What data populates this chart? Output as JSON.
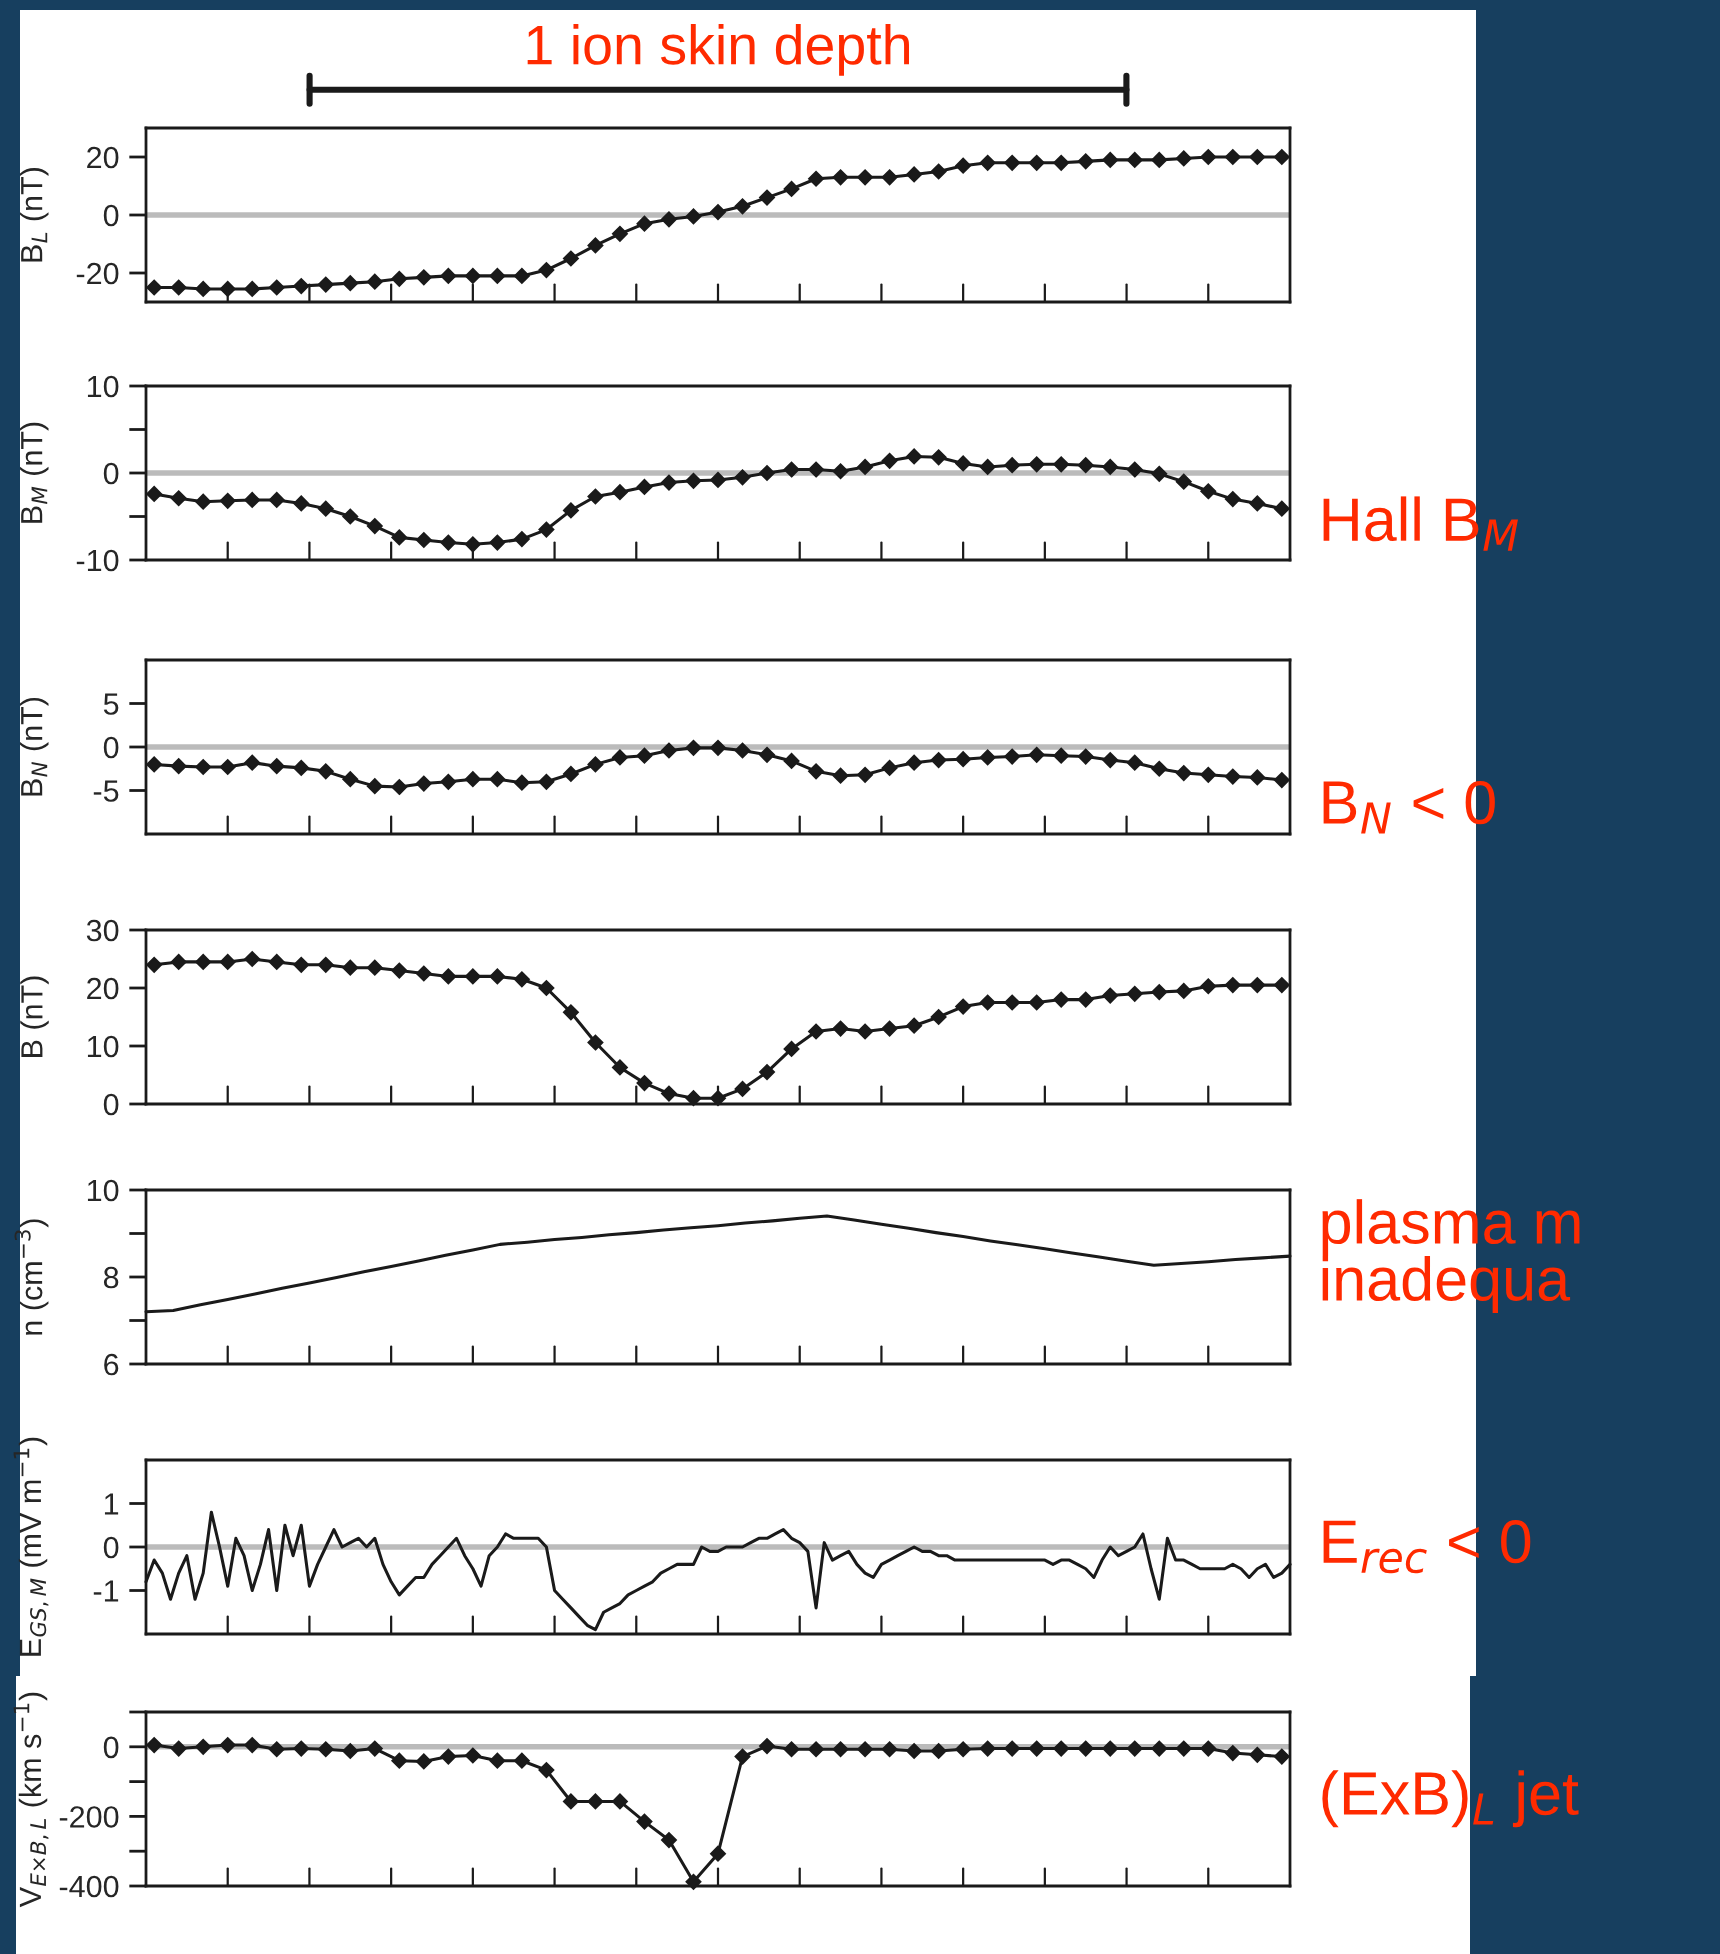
{
  "chart_data": [
    {
      "type": "line",
      "ylabel": "B$_{L}$ (nT)",
      "categories": [
        null,
        null,
        null,
        null,
        null,
        null,
        null,
        null,
        null,
        null,
        null,
        null,
        null,
        null,
        null,
        null,
        null,
        null,
        null,
        null,
        null,
        null,
        null,
        null,
        null,
        null,
        null,
        null,
        null,
        null,
        null,
        null,
        null,
        null,
        null,
        null,
        null,
        null,
        null,
        null,
        null,
        null,
        null,
        null,
        null,
        null,
        null
      ],
      "ylim": [
        -30,
        30
      ],
      "yticks": [
        -20,
        0,
        20
      ],
      "tick_labels": "y",
      "marker": "diamond",
      "line_style": "solid",
      "series": [
        {
          "color": "#1a1a1a",
          "values": [
            -25,
            -25,
            -25.5,
            -25.5,
            -25.5,
            -25,
            -24.5,
            -24,
            -23.5,
            -23,
            -22,
            -21.5,
            -21,
            -21,
            -21,
            -21,
            -19,
            -15,
            -10.5,
            -6.5,
            -3,
            -1.5,
            -0.5,
            1,
            3,
            6,
            9,
            12.5,
            13,
            13,
            13,
            14,
            15,
            17,
            18,
            18,
            18,
            18,
            18.5,
            19,
            19,
            19,
            19.5,
            20,
            20,
            20,
            20
          ]
        }
      ],
      "ref_lines": [
        {
          "axis": "y",
          "value": 0,
          "color": "#bbbbbb"
        }
      ],
      "annotations": [
        "1 ion skin depth"
      ]
    },
    {
      "type": "line",
      "ylabel": "B$_{M}$ (nT)",
      "categories": [
        null,
        null,
        null,
        null,
        null,
        null,
        null,
        null,
        null,
        null,
        null,
        null,
        null,
        null,
        null,
        null,
        null,
        null,
        null,
        null,
        null,
        null,
        null,
        null,
        null,
        null,
        null,
        null,
        null,
        null,
        null,
        null,
        null,
        null,
        null,
        null,
        null,
        null,
        null,
        null,
        null,
        null,
        null,
        null,
        null,
        null,
        null
      ],
      "ylim": [
        -10,
        10
      ],
      "yticks": [
        -10,
        {
          "value": -5,
          "label": null
        },
        0,
        {
          "value": 5,
          "label": null
        },
        10
      ],
      "tick_labels": "y",
      "marker": "diamond",
      "line_style": "solid",
      "series": [
        {
          "color": "#1a1a1a",
          "values": [
            -2.4,
            -2.9,
            -3.3,
            -3.2,
            -3.1,
            -3.1,
            -3.5,
            -4.1,
            -5,
            -6.1,
            -7.4,
            -7.7,
            -8,
            -8.2,
            -8,
            -7.6,
            -6.5,
            -4.3,
            -2.7,
            -2.2,
            -1.6,
            -1.1,
            -0.9,
            -0.8,
            -0.5,
            0,
            0.4,
            0.4,
            0.2,
            0.7,
            1.4,
            1.9,
            1.8,
            1.1,
            0.7,
            0.9,
            1,
            1,
            0.9,
            0.7,
            0.4,
            -0.1,
            -1,
            -2.1,
            -3,
            -3.5,
            -4.1
          ]
        }
      ],
      "ref_lines": [
        {
          "axis": "y",
          "value": 0,
          "color": "#bbbbbb"
        }
      ],
      "annotations": [
        "Hall B$_{M}$"
      ]
    },
    {
      "type": "line",
      "ylabel": "B$_{N}$ (nT)",
      "categories": [
        null,
        null,
        null,
        null,
        null,
        null,
        null,
        null,
        null,
        null,
        null,
        null,
        null,
        null,
        null,
        null,
        null,
        null,
        null,
        null,
        null,
        null,
        null,
        null,
        null,
        null,
        null,
        null,
        null,
        null,
        null,
        null,
        null,
        null,
        null,
        null,
        null,
        null,
        null,
        null,
        null,
        null,
        null,
        null,
        null,
        null,
        null
      ],
      "ylim": [
        -10,
        10
      ],
      "yticks": [
        -5,
        0,
        5
      ],
      "tick_labels": "y",
      "marker": "diamond",
      "line_style": "solid",
      "series": [
        {
          "color": "#1a1a1a",
          "values": [
            -2,
            -2.2,
            -2.3,
            -2.3,
            -1.8,
            -2.2,
            -2.4,
            -2.8,
            -3.7,
            -4.5,
            -4.6,
            -4.2,
            -4,
            -3.7,
            -3.7,
            -4.1,
            -4,
            -3.1,
            -2,
            -1.2,
            -1,
            -0.4,
            -0.1,
            -0.1,
            -0.4,
            -0.9,
            -1.6,
            -2.8,
            -3.3,
            -3.2,
            -2.4,
            -1.8,
            -1.5,
            -1.4,
            -1.2,
            -1.1,
            -0.9,
            -1,
            -1.1,
            -1.5,
            -1.8,
            -2.5,
            -3,
            -3.2,
            -3.4,
            -3.5,
            -3.8
          ]
        }
      ],
      "ref_lines": [
        {
          "axis": "y",
          "value": 0,
          "color": "#bbbbbb"
        }
      ],
      "annotations": [
        "B$_{N}$ < 0"
      ]
    },
    {
      "type": "line",
      "ylabel": "B (nT)",
      "categories": [
        null,
        null,
        null,
        null,
        null,
        null,
        null,
        null,
        null,
        null,
        null,
        null,
        null,
        null,
        null,
        null,
        null,
        null,
        null,
        null,
        null,
        null,
        null,
        null,
        null,
        null,
        null,
        null,
        null,
        null,
        null,
        null,
        null,
        null,
        null,
        null,
        null,
        null,
        null,
        null,
        null,
        null,
        null,
        null,
        null,
        null,
        null
      ],
      "ylim": [
        0,
        30
      ],
      "yticks": [
        0,
        10,
        20,
        30
      ],
      "tick_labels": "y",
      "marker": "diamond",
      "line_style": "solid",
      "series": [
        {
          "color": "#1a1a1a",
          "values": [
            24,
            24.5,
            24.5,
            24.5,
            25,
            24.5,
            24,
            24,
            23.5,
            23.5,
            23,
            22.5,
            22,
            22,
            22,
            21.5,
            20,
            15.8,
            10.6,
            6.3,
            3.6,
            1.8,
            1,
            1,
            2.6,
            5.5,
            9.5,
            12.5,
            13,
            12.5,
            13,
            13.5,
            15,
            16.8,
            17.5,
            17.5,
            17.5,
            18,
            18,
            18.7,
            19,
            19.3,
            19.5,
            20.3,
            20.5,
            20.5,
            20.5
          ]
        }
      ]
    },
    {
      "type": "line",
      "ylabel": "n (cm$^{−3}$)",
      "categories": [
        null,
        null,
        null,
        null,
        null,
        null,
        null,
        null,
        null,
        null,
        null,
        null,
        null,
        null,
        null,
        null,
        null,
        null,
        null,
        null,
        null,
        null,
        null,
        null,
        null,
        null,
        null,
        null,
        null,
        null,
        null,
        null,
        null,
        null,
        null,
        null,
        null,
        null,
        null,
        null,
        null,
        null,
        null
      ],
      "ylim": [
        6,
        10
      ],
      "yticks": [
        6,
        {
          "value": 7,
          "label": null
        },
        8,
        {
          "value": 9,
          "label": null
        },
        10
      ],
      "tick_labels": "y",
      "marker": "none",
      "line_style": "solid",
      "series": [
        {
          "color": "#1a1a1a",
          "values": [
            7.2,
            7.23,
            7.36,
            7.48,
            7.61,
            7.74,
            7.86,
            7.99,
            8.12,
            8.24,
            8.37,
            8.5,
            8.62,
            8.75,
            8.8,
            8.86,
            8.91,
            8.97,
            9.02,
            9.08,
            9.13,
            9.18,
            9.24,
            9.29,
            9.35,
            9.4,
            9.31,
            9.21,
            9.12,
            9.02,
            8.93,
            8.83,
            8.74,
            8.65,
            8.55,
            8.46,
            8.36,
            8.27,
            8.31,
            8.35,
            8.4,
            8.44,
            8.48
          ]
        }
      ],
      "annotations": [
        "plasma m\ninadequa"
      ]
    },
    {
      "type": "line",
      "ylabel": "E$_{GS,M}$ (mV m$^{−1}$)",
      "categories": [
        null,
        null,
        null,
        null,
        null,
        null,
        null,
        null,
        null,
        null,
        null,
        null,
        null,
        null,
        null,
        null,
        null,
        null,
        null,
        null,
        null,
        null,
        null,
        null,
        null,
        null,
        null,
        null,
        null,
        null,
        null,
        null,
        null,
        null,
        null,
        null,
        null,
        null,
        null,
        null,
        null,
        null,
        null,
        null,
        null,
        null,
        null,
        null,
        null,
        null,
        null,
        null,
        null,
        null,
        null,
        null,
        null,
        null,
        null,
        null,
        null,
        null,
        null,
        null,
        null,
        null,
        null,
        null,
        null,
        null,
        null,
        null,
        null,
        null,
        null,
        null,
        null,
        null,
        null,
        null,
        null,
        null,
        null,
        null,
        null,
        null,
        null,
        null,
        null,
        null,
        null,
        null,
        null,
        null,
        null,
        null,
        null,
        null,
        null,
        null,
        null,
        null,
        null,
        null,
        null,
        null,
        null,
        null,
        null,
        null,
        null,
        null,
        null,
        null,
        null,
        null,
        null,
        null,
        null,
        null,
        null,
        null,
        null,
        null,
        null,
        null,
        null,
        null,
        null,
        null,
        null,
        null,
        null,
        null,
        null,
        null,
        null,
        null,
        null,
        null,
        null
      ],
      "ylim": [
        -2,
        2
      ],
      "yticks": [
        -1,
        0,
        1
      ],
      "tick_labels": "y",
      "marker": "none",
      "line_style": "solid",
      "series": [
        {
          "color": "#1a1a1a",
          "values": [
            -0.8,
            -0.3,
            -0.6,
            -1.2,
            -0.6,
            -0.2,
            -1.2,
            -0.6,
            0.8,
            0,
            -0.9,
            0.2,
            -0.2,
            -1,
            -0.4,
            0.4,
            -1,
            0.5,
            -0.2,
            0.5,
            -0.9,
            -0.4,
            0,
            0.4,
            0,
            0.1,
            0.2,
            0,
            0.2,
            -0.4,
            -0.8,
            -1.1,
            -0.9,
            -0.7,
            -0.7,
            -0.4,
            -0.2,
            0,
            0.2,
            -0.2,
            -0.5,
            -0.9,
            -0.2,
            0,
            0.3,
            0.2,
            0.2,
            0.2,
            0.2,
            0,
            -1,
            -1.2,
            -1.4,
            -1.6,
            -1.8,
            -1.9,
            -1.5,
            -1.4,
            -1.3,
            -1.1,
            -1,
            -0.9,
            -0.8,
            -0.6,
            -0.5,
            -0.4,
            -0.4,
            -0.4,
            0,
            -0.1,
            -0.1,
            0,
            0,
            0,
            0.1,
            0.2,
            0.2,
            0.3,
            0.4,
            0.2,
            0.1,
            -0.1,
            -1.4,
            0.1,
            -0.3,
            -0.2,
            -0.1,
            -0.4,
            -0.6,
            -0.7,
            -0.4,
            -0.3,
            -0.2,
            -0.1,
            0,
            -0.1,
            -0.1,
            -0.2,
            -0.2,
            -0.3,
            -0.3,
            -0.3,
            -0.3,
            -0.3,
            -0.3,
            -0.3,
            -0.3,
            -0.3,
            -0.3,
            -0.3,
            -0.3,
            -0.4,
            -0.3,
            -0.3,
            -0.4,
            -0.5,
            -0.7,
            -0.3,
            0,
            -0.2,
            -0.1,
            0,
            0.3,
            -0.5,
            -1.2,
            0.2,
            -0.3,
            -0.3,
            -0.4,
            -0.5,
            -0.5,
            -0.5,
            -0.5,
            -0.4,
            -0.5,
            -0.7,
            -0.5,
            -0.4,
            -0.7,
            -0.6,
            -0.4
          ]
        }
      ],
      "ref_lines": [
        {
          "axis": "y",
          "value": 0,
          "color": "#bbbbbb"
        }
      ],
      "annotations": [
        "E$_{rec}$ < 0"
      ]
    },
    {
      "type": "line",
      "ylabel": "V$_{E×B,L}$ (km s$^{−1}$)",
      "categories": [
        null,
        null,
        null,
        null,
        null,
        null,
        null,
        null,
        null,
        null,
        null,
        null,
        null,
        null,
        null,
        null,
        null,
        null,
        null,
        null,
        null,
        null,
        null,
        null,
        null,
        null,
        null,
        null,
        null,
        null,
        null,
        null,
        null,
        null,
        null,
        null,
        null,
        null,
        null,
        null,
        null,
        null,
        null,
        null,
        null,
        null,
        null
      ],
      "ylim": [
        -400,
        100
      ],
      "yticks": [
        -400,
        {
          "value": -300,
          "label": null
        },
        -200,
        {
          "value": -100,
          "label": null
        },
        0,
        {
          "value": 100,
          "label": null
        }
      ],
      "tick_labels": "y",
      "marker": "diamond",
      "line_style": "solid",
      "series": [
        {
          "color": "#1a1a1a",
          "values": [
            5,
            -5,
            0,
            5,
            5,
            -7,
            -5,
            -7,
            -12,
            -5,
            -40,
            -42,
            -28,
            -25,
            -40,
            -40,
            -67,
            -157,
            -157,
            -157,
            -215,
            -268,
            -388,
            -307,
            -28,
            2,
            -7,
            -7,
            -7,
            -7,
            -7,
            -12,
            -12,
            -7,
            -5,
            -5,
            -5,
            -5,
            -5,
            -5,
            -5,
            -5,
            -5,
            -5,
            -18,
            -23,
            -28
          ]
        }
      ],
      "ref_lines": [
        {
          "axis": "y",
          "value": 0,
          "color": "#bbbbbb"
        }
      ],
      "annotations": [
        "(ExB)$_{L}$ jet"
      ]
    }
  ]
}
